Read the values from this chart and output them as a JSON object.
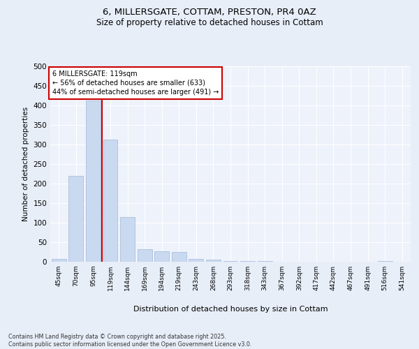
{
  "title1": "6, MILLERSGATE, COTTAM, PRESTON, PR4 0AZ",
  "title2": "Size of property relative to detached houses in Cottam",
  "xlabel": "Distribution of detached houses by size in Cottam",
  "ylabel": "Number of detached properties",
  "categories": [
    "45sqm",
    "70sqm",
    "95sqm",
    "119sqm",
    "144sqm",
    "169sqm",
    "194sqm",
    "219sqm",
    "243sqm",
    "268sqm",
    "293sqm",
    "318sqm",
    "343sqm",
    "367sqm",
    "392sqm",
    "417sqm",
    "442sqm",
    "467sqm",
    "491sqm",
    "516sqm",
    "541sqm"
  ],
  "values": [
    7,
    220,
    413,
    313,
    115,
    32,
    27,
    25,
    7,
    6,
    1,
    1,
    1,
    0,
    0,
    0,
    0,
    0,
    0,
    2,
    0
  ],
  "bar_color": "#c9d9f0",
  "bar_edge_color": "#a0b8d8",
  "vline_color": "#cc0000",
  "annotation_text": "6 MILLERSGATE: 119sqm\n← 56% of detached houses are smaller (633)\n44% of semi-detached houses are larger (491) →",
  "annotation_box_color": "#ffffff",
  "annotation_box_edge": "#cc0000",
  "bg_color": "#e8eef8",
  "plot_bg_color": "#eef2fb",
  "grid_color": "#ffffff",
  "footer": "Contains HM Land Registry data © Crown copyright and database right 2025.\nContains public sector information licensed under the Open Government Licence v3.0.",
  "ylim": [
    0,
    500
  ],
  "yticks": [
    0,
    50,
    100,
    150,
    200,
    250,
    300,
    350,
    400,
    450,
    500
  ]
}
